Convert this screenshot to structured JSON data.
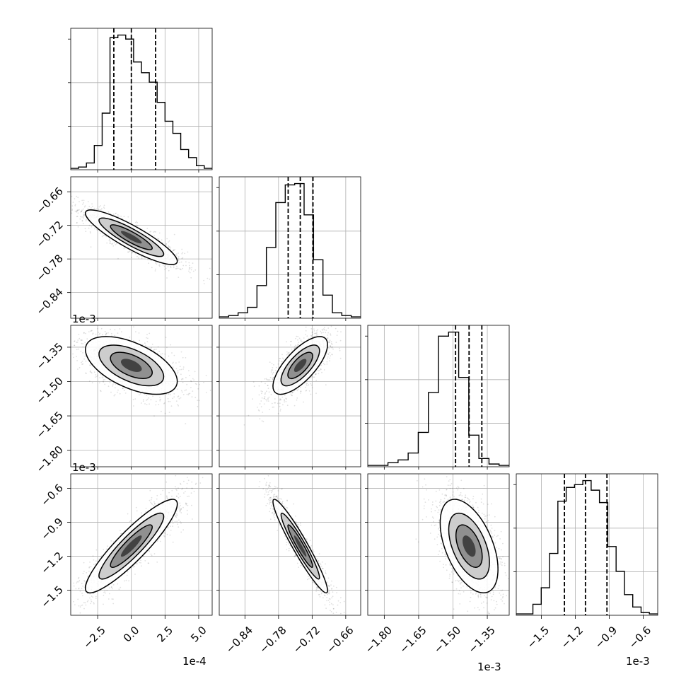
{
  "chart_data": {
    "type": "corner",
    "parameters": [
      {
        "offset_label": "1e-4",
        "ticks": [
          -2.5,
          0.0,
          2.5,
          5.0
        ],
        "tick_labels": [
          "−2.5",
          "0.0",
          "2.5",
          "5.0"
        ],
        "range": [
          -4.5,
          6.0
        ],
        "quantiles": [
          -1.3,
          0.0,
          1.8
        ]
      },
      {
        "offset_label": "1e-3",
        "ticks": [
          -0.84,
          -0.78,
          -0.72,
          -0.66
        ],
        "tick_labels": [
          "−0.84",
          "−0.78",
          "−0.72",
          "−0.66"
        ],
        "range": [
          -0.8859,
          -0.6333
        ],
        "quantiles": [
          -0.7628,
          -0.7412,
          -0.7185
        ]
      },
      {
        "offset_label": "1e-3",
        "ticks": [
          -1.8,
          -1.65,
          -1.5,
          -1.35
        ],
        "tick_labels": [
          "−1.80",
          "−1.65",
          "−1.50",
          "−1.35"
        ],
        "range": [
          -1.8722,
          -1.2544
        ],
        "quantiles": [
          -1.4886,
          -1.4296,
          -1.3739
        ]
      },
      {
        "offset_label": "1e-3",
        "ticks": [
          -1.5,
          -1.2,
          -0.9,
          -0.6
        ],
        "tick_labels": [
          "−1.5",
          "−1.2",
          "−0.9",
          "−0.6"
        ],
        "range": [
          -1.7214,
          -0.4714
        ],
        "quantiles": [
          -1.2957,
          -1.11,
          -0.92
        ]
      }
    ],
    "histograms": [
      [
        1,
        2,
        5,
        18,
        42,
        98,
        100,
        97,
        80,
        72,
        65,
        50,
        36,
        27,
        15,
        9,
        3,
        1
      ],
      [
        1,
        2,
        4,
        8,
        24,
        52,
        85,
        98,
        99,
        76,
        43,
        17,
        4,
        2,
        1
      ],
      [
        1,
        1,
        3,
        5,
        10,
        25,
        54,
        95,
        98,
        65,
        23,
        6,
        2,
        1
      ],
      [
        1,
        1,
        8,
        20,
        45,
        83,
        93,
        95,
        98,
        91,
        82,
        50,
        32,
        15,
        6,
        2,
        1
      ]
    ],
    "correlations": [
      {
        "pair": [
          1,
          0
        ],
        "rho": -0.88
      },
      {
        "pair": [
          2,
          0
        ],
        "rho": -0.55
      },
      {
        "pair": [
          2,
          1
        ],
        "rho": 0.72
      },
      {
        "pair": [
          3,
          0
        ],
        "rho": 0.9
      },
      {
        "pair": [
          3,
          1
        ],
        "rho": -0.95
      },
      {
        "pair": [
          3,
          2
        ],
        "rho": -0.5
      }
    ],
    "grid": true
  }
}
